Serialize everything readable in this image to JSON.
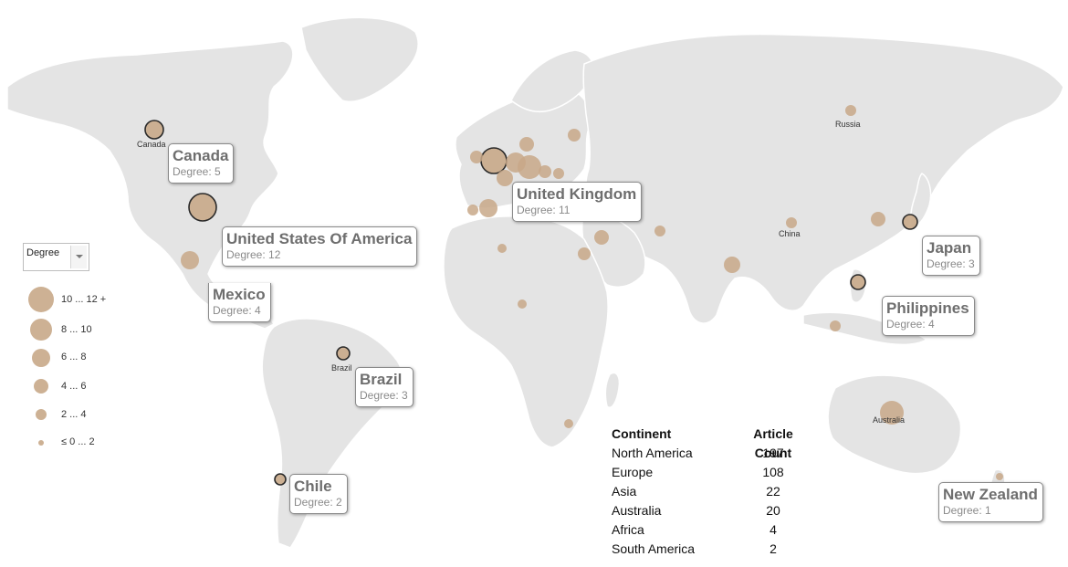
{
  "legend": {
    "select_value": "Degree",
    "items": [
      {
        "label": "10 ... 12 +"
      },
      {
        "label": "8 ... 10"
      },
      {
        "label": "6 ... 8"
      },
      {
        "label": "4 ... 6"
      },
      {
        "label": "2 ... 4"
      },
      {
        "label": "≤ 0 ... 2"
      }
    ]
  },
  "map_labels": {
    "canada": "Canada",
    "russia": "Russia",
    "china": "China",
    "brazil": "Brazil",
    "australia": "Australia"
  },
  "tooltips": [
    {
      "country": "Canada",
      "degree": "Degree: 5"
    },
    {
      "country": "United Kingdom",
      "degree": "Degree: 11"
    },
    {
      "country": "United States Of America",
      "degree": "Degree: 12"
    },
    {
      "country": "Mexico",
      "degree": "Degree: 4"
    },
    {
      "country": "Japan",
      "degree": "Degree: 3"
    },
    {
      "country": "Philippines",
      "degree": "Degree: 4"
    },
    {
      "country": "Brazil",
      "degree": "Degree: 3"
    },
    {
      "country": "Chile",
      "degree": "Degree: 2"
    },
    {
      "country": "New Zealand",
      "degree": "Degree: 1"
    }
  ],
  "continent_table": {
    "headers": {
      "continent": "Continent",
      "count": "Article Count"
    },
    "rows": [
      {
        "continent": "North America",
        "count": "197"
      },
      {
        "continent": "Europe",
        "count": "108"
      },
      {
        "continent": "Asia",
        "count": "22"
      },
      {
        "continent": "Australia",
        "count": "20"
      },
      {
        "continent": "Africa",
        "count": "4"
      },
      {
        "continent": "South America",
        "count": "2"
      }
    ]
  },
  "colors": {
    "land": "#e4e4e4",
    "bubble": "#c8a888",
    "selected_outline": "#2a2a2a"
  }
}
